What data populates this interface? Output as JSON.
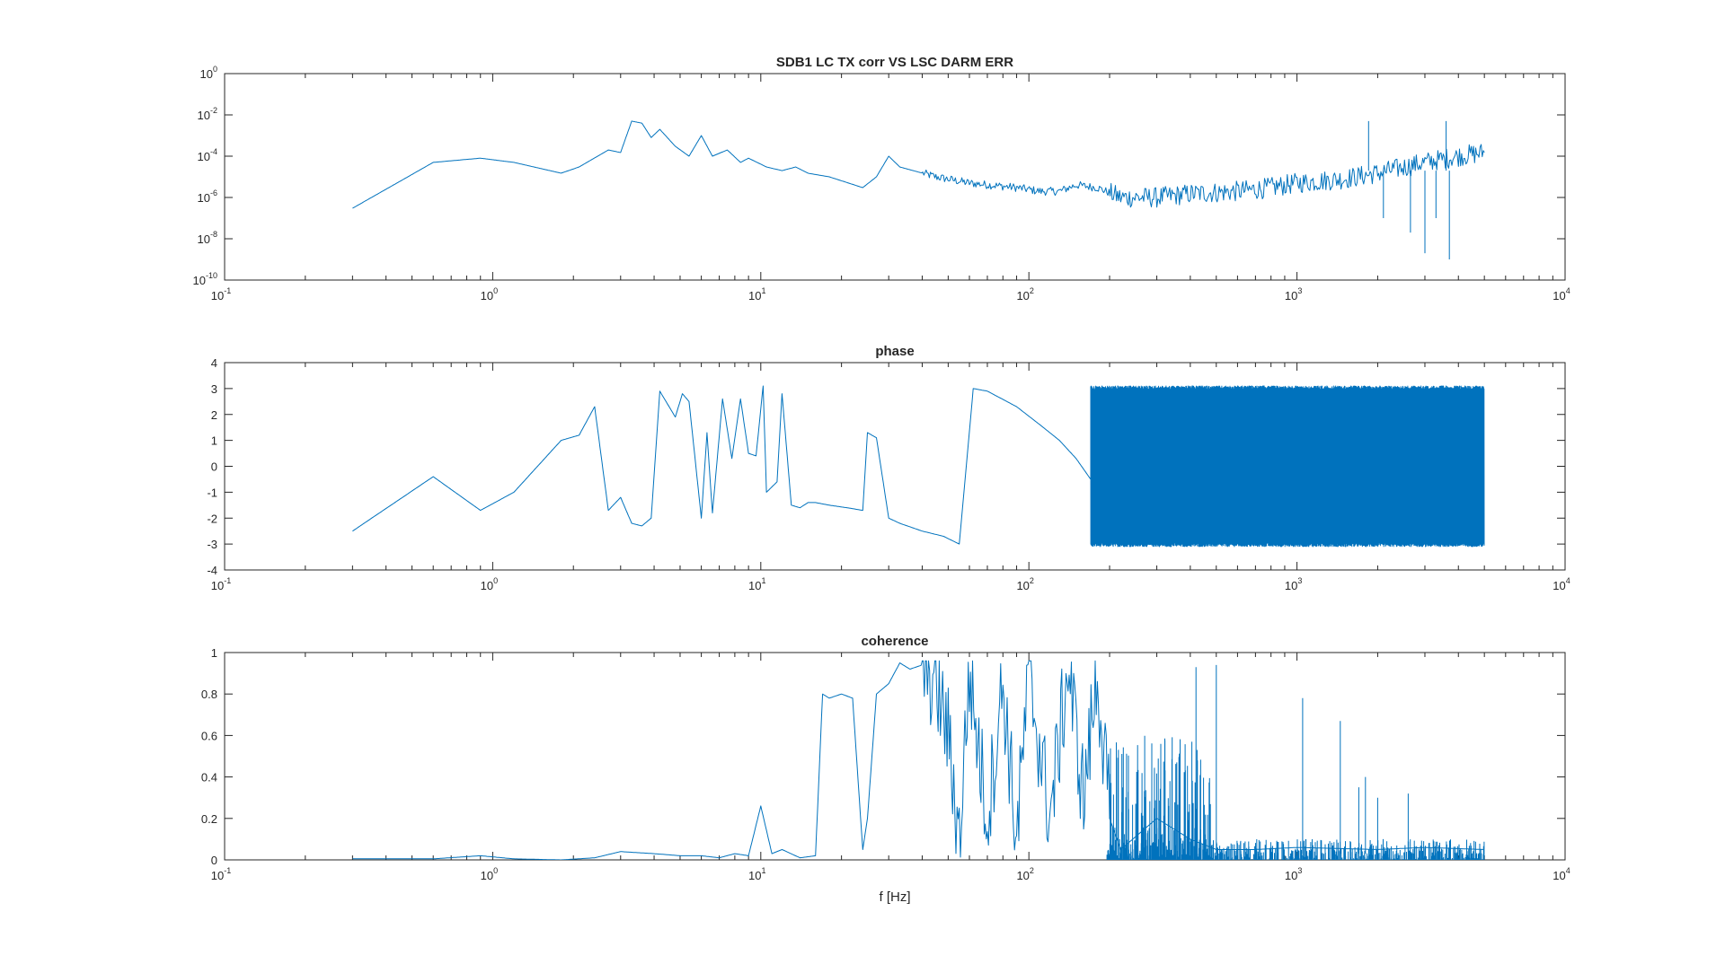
{
  "figure": {
    "xlabel": "f [Hz]"
  },
  "colors": {
    "line": "#0072bd",
    "axes": "#262626",
    "background": "#ffffff"
  },
  "chart_data": [
    {
      "type": "line",
      "title": "SDB1 LC TX corr VS LSC DARM ERR",
      "xscale": "log",
      "yscale": "log",
      "xlim": [
        0.1,
        10000
      ],
      "ylim": [
        1e-10,
        1
      ],
      "xticks": [
        {
          "base": "10",
          "exp": "-1"
        },
        {
          "base": "10",
          "exp": "0"
        },
        {
          "base": "10",
          "exp": "1"
        },
        {
          "base": "10",
          "exp": "2"
        },
        {
          "base": "10",
          "exp": "3"
        },
        {
          "base": "10",
          "exp": "4"
        }
      ],
      "yticks": [
        {
          "base": "10",
          "exp": "-10"
        },
        {
          "base": "10",
          "exp": "-8"
        },
        {
          "base": "10",
          "exp": "-6"
        },
        {
          "base": "10",
          "exp": "-4"
        },
        {
          "base": "10",
          "exp": "-2"
        },
        {
          "base": "10",
          "exp": "0"
        }
      ],
      "grid": false,
      "x": [
        0.3,
        0.6,
        0.9,
        1.2,
        1.8,
        2.1,
        2.7,
        3.0,
        3.3,
        3.6,
        3.9,
        4.2,
        4.8,
        5.4,
        6.0,
        6.6,
        7.5,
        8.4,
        9.0,
        10.5,
        12.0,
        13.5,
        15.0,
        18.0,
        24.0,
        27.0,
        30.0,
        33.0,
        45.0,
        60.0,
        90.0,
        110.0,
        130.0,
        150.0,
        180.0,
        220.0,
        300.0,
        400.0,
        600.0,
        800.0,
        1000.0,
        1500.0,
        2000.0,
        3000.0,
        4000.0,
        5000.0
      ],
      "y": [
        3e-07,
        5e-05,
        8e-05,
        5e-05,
        1.5e-05,
        3e-05,
        0.0002,
        0.00015,
        0.005,
        0.004,
        0.0008,
        0.002,
        0.0003,
        0.0001,
        0.001,
        0.0001,
        0.0002,
        5e-05,
        8e-05,
        3e-05,
        2e-05,
        3e-05,
        1.5e-05,
        1e-05,
        3e-06,
        1e-05,
        0.0001,
        3e-05,
        1e-05,
        5e-06,
        3e-06,
        2e-06,
        2e-06,
        4e-06,
        3e-06,
        1e-06,
        1e-06,
        1.5e-06,
        2e-06,
        3e-06,
        5e-06,
        8e-06,
        1.5e-05,
        5e-05,
        0.0001,
        0.00015
      ]
    },
    {
      "type": "line",
      "title": "phase",
      "xscale": "log",
      "yscale": "linear",
      "xlim": [
        0.1,
        10000
      ],
      "ylim": [
        -4,
        4
      ],
      "xticks": [
        {
          "base": "10",
          "exp": "-1"
        },
        {
          "base": "10",
          "exp": "0"
        },
        {
          "base": "10",
          "exp": "1"
        },
        {
          "base": "10",
          "exp": "2"
        },
        {
          "base": "10",
          "exp": "3"
        },
        {
          "base": "10",
          "exp": "4"
        }
      ],
      "yticks": [
        "-4",
        "-3",
        "-2",
        "-1",
        "0",
        "1",
        "2",
        "3",
        "4"
      ],
      "grid": false,
      "x": [
        0.3,
        0.6,
        0.9,
        1.2,
        1.8,
        2.1,
        2.4,
        2.7,
        3.0,
        3.3,
        3.6,
        3.9,
        4.2,
        4.8,
        5.1,
        5.4,
        6.0,
        6.3,
        6.6,
        7.2,
        7.8,
        8.4,
        9.0,
        9.6,
        10.2,
        10.5,
        11.5,
        12.0,
        13.0,
        14.0,
        15.0,
        16.0,
        18.0,
        21.0,
        24.0,
        25.0,
        27.0,
        30.0,
        33.0,
        40.0,
        48.0,
        55.0,
        62.0,
        70.0,
        90.0,
        110.0,
        130.0,
        150.0,
        170.0
      ],
      "y": [
        -2.5,
        -0.4,
        -1.7,
        -1.0,
        1.0,
        1.2,
        2.3,
        -1.7,
        -1.2,
        -2.2,
        -2.3,
        -2.0,
        2.9,
        1.9,
        2.8,
        2.5,
        -2.0,
        1.3,
        -1.8,
        2.6,
        0.3,
        2.6,
        0.5,
        0.4,
        3.1,
        -1.0,
        -0.6,
        2.8,
        -1.5,
        -1.6,
        -1.4,
        -1.4,
        -1.5,
        -1.6,
        -1.7,
        1.3,
        1.1,
        -2.0,
        -2.2,
        -2.5,
        -2.7,
        -3.0,
        3.0,
        2.9,
        2.3,
        1.6,
        1.0,
        0.3,
        -0.5
      ]
    },
    {
      "type": "line",
      "title": "coherence",
      "xscale": "log",
      "yscale": "linear",
      "xlim": [
        0.1,
        10000
      ],
      "ylim": [
        0,
        1
      ],
      "xticks": [
        {
          "base": "10",
          "exp": "-1"
        },
        {
          "base": "10",
          "exp": "0"
        },
        {
          "base": "10",
          "exp": "1"
        },
        {
          "base": "10",
          "exp": "2"
        },
        {
          "base": "10",
          "exp": "3"
        },
        {
          "base": "10",
          "exp": "4"
        }
      ],
      "yticks": [
        "0",
        "0.2",
        "0.4",
        "0.6",
        "0.8",
        "1"
      ],
      "grid": false,
      "xlabel": "f [Hz]",
      "x": [
        0.3,
        0.6,
        0.9,
        1.2,
        1.8,
        2.4,
        3.0,
        4.0,
        5.0,
        6.0,
        7.0,
        8.0,
        9.0,
        10.0,
        11.0,
        12.0,
        14.0,
        16.0,
        17.0,
        18.0,
        20.0,
        22.0,
        24.0,
        25.0,
        27.0,
        30.0,
        33.0,
        36.0,
        40.0,
        45.0,
        50.0,
        55.0,
        60.0,
        70.0,
        80.0,
        90.0,
        100.0,
        120.0,
        140.0,
        160.0,
        180.0,
        200.0,
        220.0,
        300.0,
        400.0,
        500.0,
        700.0,
        1000.0,
        2000.0,
        3000.0,
        5000.0
      ],
      "y": [
        0.005,
        0.005,
        0.02,
        0.005,
        0.0,
        0.01,
        0.04,
        0.03,
        0.02,
        0.02,
        0.01,
        0.03,
        0.02,
        0.26,
        0.03,
        0.05,
        0.01,
        0.02,
        0.8,
        0.78,
        0.8,
        0.78,
        0.05,
        0.2,
        0.8,
        0.85,
        0.95,
        0.92,
        0.94,
        0.85,
        0.6,
        0.1,
        0.9,
        0.2,
        0.85,
        0.1,
        0.9,
        0.2,
        0.93,
        0.3,
        0.9,
        0.2,
        0.05,
        0.2,
        0.1,
        0.05,
        0.05,
        0.06,
        0.05,
        0.06,
        0.05
      ],
      "noise": [
        {
          "xmin": 195,
          "xmax": 5000,
          "ymin": 0.0,
          "ymax": 0.1,
          "density": 900
        },
        {
          "xmin": 200,
          "xmax": 480,
          "ymin": 0.0,
          "ymax": 0.6,
          "density": 200
        }
      ]
    }
  ]
}
